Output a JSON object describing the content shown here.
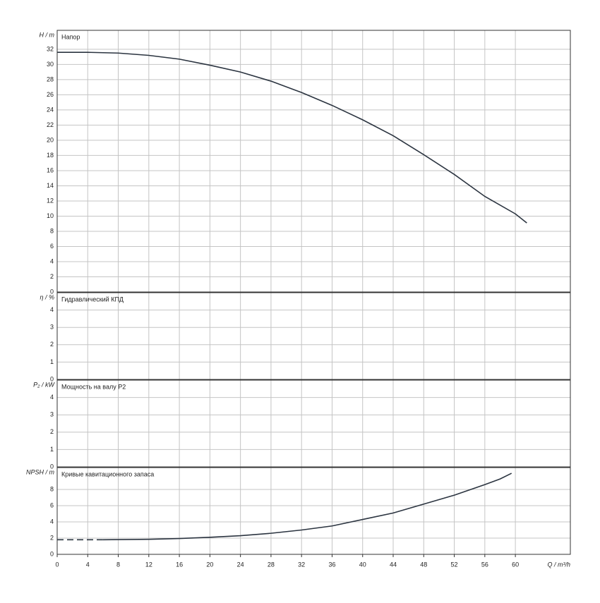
{
  "chart_data": [
    {
      "type": "line",
      "title": "Напор",
      "ylabel": "H / m",
      "xlim": [
        0,
        67.2
      ],
      "ylim": [
        0,
        34.5
      ],
      "yticks": [
        0,
        2,
        4,
        6,
        8,
        10,
        12,
        14,
        16,
        18,
        20,
        22,
        24,
        26,
        28,
        30,
        32
      ],
      "grid": true,
      "series": [
        {
          "color": "#2b3440",
          "dashed": false,
          "x": [
            0,
            4,
            8,
            12,
            16,
            20,
            24,
            28,
            32,
            36,
            40,
            44,
            48,
            52,
            56,
            60,
            61.5
          ],
          "values": [
            31.6,
            31.6,
            31.5,
            31.2,
            30.7,
            29.9,
            29,
            27.8,
            26.3,
            24.6,
            22.7,
            20.6,
            18.1,
            15.5,
            12.6,
            10.3,
            9.1
          ]
        }
      ]
    },
    {
      "type": "line",
      "title": "Гидравлический КПД",
      "ylabel": "η / %",
      "xlim": [
        0,
        67.2
      ],
      "ylim": [
        0,
        5
      ],
      "yticks": [
        0,
        1,
        2,
        3,
        4
      ],
      "grid": true,
      "series": []
    },
    {
      "type": "line",
      "title": "Мощность на валу P2",
      "ylabel": "P₂ / kW",
      "xlim": [
        0,
        67.2
      ],
      "ylim": [
        0,
        5
      ],
      "yticks": [
        0,
        1,
        2,
        3,
        4
      ],
      "grid": true,
      "series": []
    },
    {
      "type": "line",
      "title": "Кривые кавитационного запаса",
      "ylabel": "NPSH / m",
      "xlim": [
        0,
        67.2
      ],
      "ylim": [
        0,
        10.7
      ],
      "yticks": [
        0,
        2,
        4,
        6,
        8
      ],
      "grid": true,
      "xlabel": "Q / m³/h",
      "xticks": [
        0,
        4,
        8,
        12,
        16,
        20,
        24,
        28,
        32,
        36,
        40,
        44,
        48,
        52,
        56,
        60
      ],
      "series": [
        {
          "color": "#2b3440",
          "dashed": true,
          "x": [
            0,
            6
          ],
          "values": [
            1.8,
            1.8
          ]
        },
        {
          "color": "#2b3440",
          "dashed": false,
          "x": [
            6,
            12,
            16,
            20,
            24,
            28,
            32,
            36,
            40,
            44,
            48,
            52,
            56,
            58,
            59.5
          ],
          "values": [
            1.8,
            1.85,
            1.95,
            2.1,
            2.3,
            2.6,
            3.0,
            3.5,
            4.3,
            5.1,
            6.2,
            7.3,
            8.6,
            9.3,
            10
          ]
        }
      ]
    }
  ]
}
